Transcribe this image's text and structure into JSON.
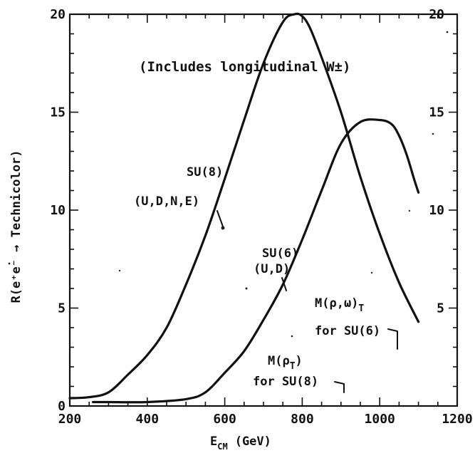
{
  "chart_data": {
    "type": "line",
    "title": "",
    "xlabel": "E",
    "xlabel_sub": "CM",
    "xlabel_unit": "(GeV)",
    "ylabel": "R(e⁺e⁻ → Technicolor)",
    "xlim": [
      200,
      1200
    ],
    "ylim": [
      0,
      20
    ],
    "x_ticks": [
      200,
      400,
      600,
      800,
      1000,
      1200
    ],
    "x_tick_labels": [
      "200",
      "400",
      "600",
      "800",
      "1000",
      "1200"
    ],
    "y_ticks": [
      0,
      5,
      10,
      15,
      20
    ],
    "y_tick_labels_left": [
      "0",
      "5",
      "10",
      "15",
      "20"
    ],
    "y_tick_labels_right": [
      "5",
      "10",
      "15",
      "20"
    ],
    "grid": false,
    "series": [
      {
        "name": "SU(8) (U,D,N,E)",
        "x": [
          200,
          250,
          300,
          350,
          400,
          450,
          500,
          550,
          600,
          650,
          700,
          750,
          780,
          800,
          820,
          850,
          900,
          950,
          1000,
          1050,
          1100
        ],
        "y": [
          0.4,
          0.45,
          0.7,
          1.6,
          2.6,
          4.0,
          6.2,
          8.7,
          11.6,
          14.6,
          17.5,
          19.6,
          20.0,
          19.9,
          19.3,
          17.8,
          15.0,
          11.7,
          8.8,
          6.3,
          4.3
        ]
      },
      {
        "name": "SU(6) (U,D)",
        "x": [
          260,
          300,
          400,
          500,
          550,
          600,
          650,
          700,
          750,
          800,
          850,
          900,
          950,
          1000,
          1030,
          1050,
          1070,
          1090,
          1100
        ],
        "y": [
          0.2,
          0.2,
          0.2,
          0.35,
          0.7,
          1.7,
          2.8,
          4.4,
          6.2,
          8.5,
          11.0,
          13.4,
          14.5,
          14.6,
          14.4,
          13.8,
          12.8,
          11.5,
          10.9
        ]
      }
    ],
    "annotations": {
      "header": "(Includes longitudinal W±)",
      "su8_line1": "SU(8)",
      "su8_line2": "(U,D,N,E)",
      "su6_line1": "SU(6)",
      "su6_line2": "(U,D)",
      "mrho_omega_line1": "M(ρ,ω)",
      "mrho_omega_sub": "T",
      "mrho_omega_line2": "for SU(6)",
      "mrho_line1": "M(ρ",
      "mrho_sub": "T",
      "mrho_close": ")",
      "mrho_line2": "for SU(8)"
    }
  }
}
